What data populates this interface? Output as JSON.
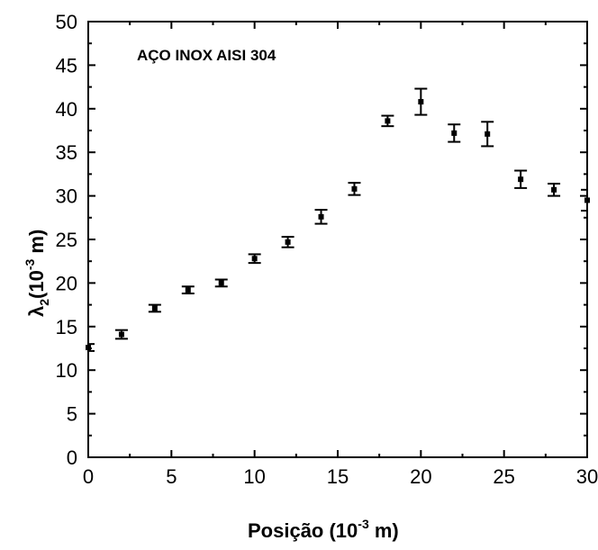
{
  "chart_data": {
    "type": "scatter",
    "annotation": "AÇO INOX AISI 304",
    "xlabel": "Posição (10",
    "xlabel_exp": "-3",
    "xlabel_unit": " m)",
    "ylabel_main": "λ",
    "ylabel_sub": "2",
    "ylabel_rest": "(10",
    "ylabel_exp": "-3",
    "ylabel_unit": " m)",
    "xlim": [
      0,
      30
    ],
    "ylim": [
      0,
      50
    ],
    "xticks": [
      0,
      5,
      10,
      15,
      20,
      25,
      30
    ],
    "xticks_minor": [
      2.5,
      7.5,
      12.5,
      17.5,
      22.5,
      27.5
    ],
    "yticks": [
      0,
      5,
      10,
      15,
      20,
      25,
      30,
      35,
      40,
      45,
      50
    ],
    "yticks_minor": [
      2.5,
      7.5,
      12.5,
      17.5,
      22.5,
      27.5,
      32.5,
      37.5,
      42.5,
      47.5
    ],
    "grid": false,
    "points": [
      {
        "x": 0,
        "y": 12.6,
        "err": 0.4
      },
      {
        "x": 2,
        "y": 14.1,
        "err": 0.5
      },
      {
        "x": 4,
        "y": 17.1,
        "err": 0.4
      },
      {
        "x": 6,
        "y": 19.2,
        "err": 0.4
      },
      {
        "x": 8,
        "y": 20.0,
        "err": 0.4
      },
      {
        "x": 10,
        "y": 22.8,
        "err": 0.5
      },
      {
        "x": 12,
        "y": 24.7,
        "err": 0.6
      },
      {
        "x": 14,
        "y": 27.6,
        "err": 0.8
      },
      {
        "x": 16,
        "y": 30.8,
        "err": 0.7
      },
      {
        "x": 18,
        "y": 38.6,
        "err": 0.6
      },
      {
        "x": 20,
        "y": 40.8,
        "err": 1.5
      },
      {
        "x": 22,
        "y": 37.2,
        "err": 1.0
      },
      {
        "x": 24,
        "y": 37.1,
        "err": 1.4
      },
      {
        "x": 26,
        "y": 31.9,
        "err": 1.0
      },
      {
        "x": 28,
        "y": 30.7,
        "err": 0.7
      },
      {
        "x": 30,
        "y": 29.5,
        "err": 1.2
      }
    ]
  }
}
